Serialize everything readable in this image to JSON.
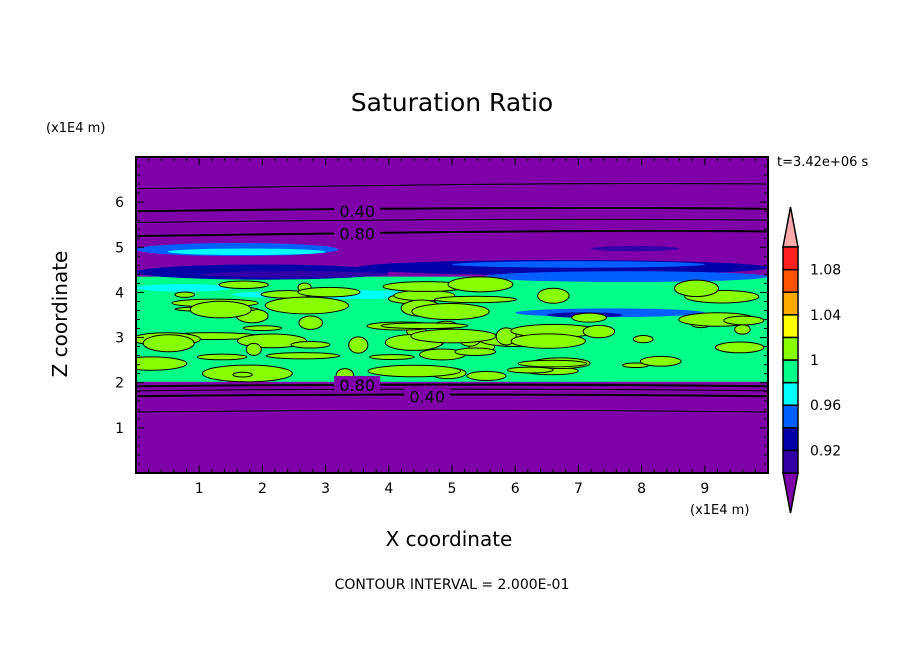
{
  "chart_data": {
    "type": "heatmap",
    "title": "Saturation Ratio",
    "xlabel": "X coordinate",
    "ylabel": "Z coordinate",
    "x_unit": "(x1E4 m)",
    "y_unit": "(x1E4 m)",
    "xlim": [
      0,
      10
    ],
    "ylim": [
      0,
      7
    ],
    "x_ticks": [
      "1",
      "2",
      "3",
      "4",
      "5",
      "6",
      "7",
      "8",
      "9"
    ],
    "y_ticks": [
      "1",
      "2",
      "3",
      "4",
      "5",
      "6"
    ],
    "time_label": "t=3.42e+06 s",
    "contour_interval": "CONTOUR INTERVAL = 2.000E-01",
    "contour_labels": [
      {
        "text": "0.40",
        "x": 3.5,
        "z": 5.8
      },
      {
        "text": "0.80",
        "x": 3.5,
        "z": 5.3
      },
      {
        "text": "0.80",
        "x": 3.5,
        "z": 1.95
      },
      {
        "text": "0.40",
        "x": 3.5,
        "z": 1.7
      }
    ],
    "colorbar": {
      "tick_labels": [
        "0.92",
        "0.96",
        "1",
        "1.04",
        "1.08"
      ],
      "levels": [
        0.9,
        0.92,
        0.94,
        0.96,
        0.98,
        1.0,
        1.02,
        1.04,
        1.06,
        1.08,
        1.1
      ],
      "colors": [
        "#3300a8",
        "#0000a8",
        "#0060ff",
        "#00ffff",
        "#00ff88",
        "#88ff00",
        "#ffff00",
        "#ffaa00",
        "#ff5500",
        "#ff2020"
      ],
      "under_color": "#7f00a8",
      "over_color": "#ffaaaa"
    }
  }
}
